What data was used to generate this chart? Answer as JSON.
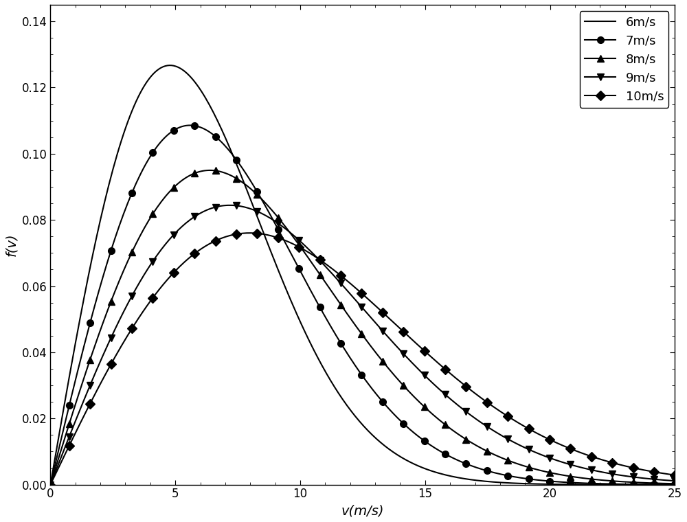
{
  "title": "",
  "xlabel": "v(m/s)",
  "ylabel": "f(v)",
  "xlim": [
    0,
    25
  ],
  "ylim": [
    0,
    0.145
  ],
  "yticks": [
    0.0,
    0.02,
    0.04,
    0.06,
    0.08,
    0.1,
    0.12,
    0.14
  ],
  "xticks": [
    0,
    5,
    10,
    15,
    20,
    25
  ],
  "series": [
    {
      "label": "6m/s",
      "k": 2.0,
      "lam": 6.77,
      "color": "black",
      "marker": null,
      "markevery": null
    },
    {
      "label": "7m/s",
      "k": 2.0,
      "lam": 7.9,
      "color": "black",
      "marker": "o",
      "markevery": 10
    },
    {
      "label": "8m/s",
      "k": 2.0,
      "lam": 9.03,
      "color": "black",
      "marker": "^",
      "markevery": 10
    },
    {
      "label": "9m/s",
      "k": 2.0,
      "lam": 10.16,
      "color": "black",
      "marker": "v",
      "markevery": 10
    },
    {
      "label": "10m/s",
      "k": 2.0,
      "lam": 11.28,
      "color": "black",
      "marker": "D",
      "markevery": 10
    }
  ],
  "legend_fontsize": 13,
  "axis_fontsize": 14,
  "tick_fontsize": 12,
  "figsize": [
    10.0,
    7.6
  ],
  "dpi": 100,
  "n_points": 300,
  "markersize": 7,
  "linewidth": 1.5
}
